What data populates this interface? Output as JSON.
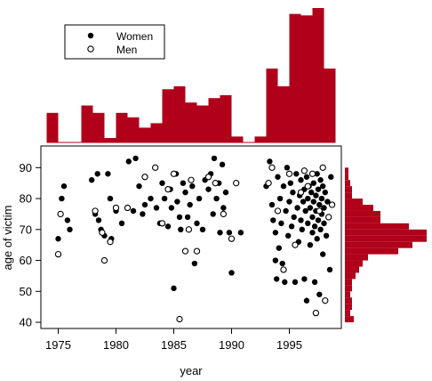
{
  "chart_data": {
    "type": "scatter",
    "xlabel": "year",
    "ylabel": "age of victim",
    "xlim": [
      1973.5,
      1999.5
    ],
    "ylim": [
      38,
      97
    ],
    "x_ticks": [
      1975,
      1980,
      1985,
      1990,
      1995
    ],
    "y_ticks": [
      40,
      50,
      60,
      70,
      80,
      90
    ],
    "legend": {
      "placement": "top-left",
      "entries": [
        "Women",
        "Men"
      ]
    },
    "bar_color": "#b0001a",
    "series": [
      {
        "name": "Women",
        "marker": "filled-circle",
        "points": [
          [
            1975.0,
            67
          ],
          [
            1975.3,
            80
          ],
          [
            1975.5,
            84
          ],
          [
            1975.8,
            73
          ],
          [
            1976.0,
            70
          ],
          [
            1977.9,
            86
          ],
          [
            1978.2,
            75
          ],
          [
            1978.4,
            88
          ],
          [
            1978.5,
            73
          ],
          [
            1978.7,
            70
          ],
          [
            1979.0,
            68
          ],
          [
            1979.3,
            88
          ],
          [
            1979.5,
            80
          ],
          [
            1979.6,
            67
          ],
          [
            1980.0,
            76
          ],
          [
            1980.5,
            72
          ],
          [
            1981.1,
            92
          ],
          [
            1981.5,
            76
          ],
          [
            1981.7,
            93
          ],
          [
            1982.0,
            84
          ],
          [
            1982.3,
            75
          ],
          [
            1982.5,
            78
          ],
          [
            1983.0,
            80
          ],
          [
            1983.4,
            90
          ],
          [
            1983.5,
            77
          ],
          [
            1983.8,
            72
          ],
          [
            1984.0,
            85
          ],
          [
            1984.2,
            80
          ],
          [
            1984.5,
            71
          ],
          [
            1984.7,
            83
          ],
          [
            1984.8,
            77
          ],
          [
            1985.0,
            51
          ],
          [
            1985.2,
            88
          ],
          [
            1985.3,
            79
          ],
          [
            1985.5,
            74
          ],
          [
            1985.6,
            70
          ],
          [
            1985.8,
            85
          ],
          [
            1986.0,
            82
          ],
          [
            1986.2,
            74
          ],
          [
            1986.4,
            78
          ],
          [
            1986.6,
            84
          ],
          [
            1986.8,
            59
          ],
          [
            1987.0,
            72
          ],
          [
            1987.2,
            80
          ],
          [
            1987.5,
            70
          ],
          [
            1987.7,
            86
          ],
          [
            1988.0,
            83
          ],
          [
            1988.2,
            88
          ],
          [
            1988.4,
            75
          ],
          [
            1988.5,
            93
          ],
          [
            1988.7,
            80
          ],
          [
            1988.9,
            85
          ],
          [
            1989.0,
            69
          ],
          [
            1989.2,
            91
          ],
          [
            1989.3,
            77
          ],
          [
            1989.5,
            82
          ],
          [
            1989.8,
            69
          ],
          [
            1990.0,
            56
          ],
          [
            1990.8,
            69
          ],
          [
            1993.0,
            84
          ],
          [
            1993.3,
            92
          ],
          [
            1993.5,
            78
          ],
          [
            1993.6,
            73
          ],
          [
            1993.8,
            69
          ],
          [
            1993.8,
            60
          ],
          [
            1993.9,
            54
          ],
          [
            1994.0,
            87
          ],
          [
            1994.1,
            64
          ],
          [
            1994.2,
            80
          ],
          [
            1994.3,
            72
          ],
          [
            1994.4,
            59
          ],
          [
            1994.5,
            84
          ],
          [
            1994.6,
            53
          ],
          [
            1994.7,
            76
          ],
          [
            1994.8,
            90
          ],
          [
            1994.9,
            68
          ],
          [
            1995.0,
            79
          ],
          [
            1995.1,
            85
          ],
          [
            1995.2,
            71
          ],
          [
            1995.3,
            82
          ],
          [
            1995.4,
            74
          ],
          [
            1995.5,
            53
          ],
          [
            1995.6,
            88
          ],
          [
            1995.7,
            77
          ],
          [
            1995.8,
            66
          ],
          [
            1995.9,
            81
          ],
          [
            1996.0,
            73
          ],
          [
            1996.0,
            86
          ],
          [
            1996.1,
            70
          ],
          [
            1996.2,
            79
          ],
          [
            1996.3,
            83
          ],
          [
            1996.3,
            54
          ],
          [
            1996.4,
            76
          ],
          [
            1996.5,
            47
          ],
          [
            1996.5,
            87
          ],
          [
            1996.6,
            72
          ],
          [
            1996.6,
            80
          ],
          [
            1996.7,
            84
          ],
          [
            1996.8,
            65
          ],
          [
            1996.8,
            77
          ],
          [
            1996.9,
            82
          ],
          [
            1997.0,
            74
          ],
          [
            1997.0,
            69
          ],
          [
            1997.1,
            85
          ],
          [
            1997.1,
            79
          ],
          [
            1997.2,
            71
          ],
          [
            1997.2,
            53
          ],
          [
            1997.3,
            81
          ],
          [
            1997.3,
            76
          ],
          [
            1997.4,
            88
          ],
          [
            1997.4,
            67
          ],
          [
            1997.5,
            83
          ],
          [
            1997.5,
            73
          ],
          [
            1997.6,
            49
          ],
          [
            1997.6,
            78
          ],
          [
            1997.7,
            86
          ],
          [
            1997.7,
            70
          ],
          [
            1997.8,
            80
          ],
          [
            1997.8,
            75
          ],
          [
            1997.9,
            84
          ],
          [
            1997.9,
            62
          ],
          [
            1998.0,
            77
          ],
          [
            1998.0,
            72
          ],
          [
            1998.1,
            82
          ],
          [
            1998.2,
            68
          ],
          [
            1998.3,
            79
          ],
          [
            1998.4,
            74
          ],
          [
            1998.5,
            57
          ],
          [
            1998.6,
            87
          ]
        ]
      },
      {
        "name": "Men",
        "marker": "open-circle",
        "points": [
          [
            1975.0,
            62
          ],
          [
            1975.2,
            75
          ],
          [
            1978.2,
            76
          ],
          [
            1978.8,
            69
          ],
          [
            1979.0,
            60
          ],
          [
            1979.5,
            66
          ],
          [
            1980.0,
            77
          ],
          [
            1981.0,
            77
          ],
          [
            1982.5,
            87
          ],
          [
            1983.4,
            90
          ],
          [
            1984.0,
            72
          ],
          [
            1984.5,
            83
          ],
          [
            1985.0,
            88
          ],
          [
            1985.5,
            41
          ],
          [
            1986.0,
            63
          ],
          [
            1986.3,
            70
          ],
          [
            1986.5,
            86
          ],
          [
            1987.0,
            63
          ],
          [
            1988.0,
            87
          ],
          [
            1988.6,
            85
          ],
          [
            1989.3,
            75
          ],
          [
            1990.0,
            67
          ],
          [
            1990.4,
            85
          ],
          [
            1993.2,
            85
          ],
          [
            1993.5,
            90
          ],
          [
            1994.0,
            76
          ],
          [
            1994.5,
            57
          ],
          [
            1995.0,
            88
          ],
          [
            1995.5,
            65
          ],
          [
            1996.0,
            82
          ],
          [
            1996.3,
            89
          ],
          [
            1996.6,
            84
          ],
          [
            1997.0,
            88
          ],
          [
            1997.3,
            43
          ],
          [
            1997.6,
            76
          ],
          [
            1997.9,
            90
          ],
          [
            1998.1,
            47
          ],
          [
            1998.4,
            74
          ],
          [
            1998.7,
            78
          ]
        ]
      }
    ],
    "year_histogram": {
      "bin_edges": [
        1974,
        1975,
        1976,
        1977,
        1978,
        1979,
        1980,
        1981,
        1982,
        1983,
        1984,
        1985,
        1986,
        1987,
        1988,
        1989,
        1990,
        1991,
        1992,
        1993,
        1994,
        1995,
        1996,
        1997,
        1998,
        1999
      ],
      "counts": [
        2,
        0,
        0,
        2.5,
        2,
        0.3,
        2,
        1.7,
        1,
        1.3,
        3.6,
        3.8,
        2.7,
        2.5,
        3,
        3.2,
        0.4,
        0,
        0.4,
        5,
        3.8,
        8.7,
        8.6,
        9.1,
        5
      ]
    },
    "age_histogram": {
      "bin_edges": [
        40,
        42,
        44,
        46,
        48,
        50,
        52,
        54,
        56,
        58,
        60,
        62,
        64,
        66,
        68,
        70,
        72,
        74,
        76,
        78,
        80,
        82,
        84,
        86,
        88,
        90
      ],
      "counts": [
        0.5,
        0.3,
        0.4,
        0.4,
        0.3,
        0.4,
        0.4,
        0.6,
        0.8,
        1.0,
        1.3,
        3.0,
        3.8,
        4.6,
        4.6,
        3.6,
        2.0,
        2.0,
        1.6,
        1.0,
        0.4,
        0.4,
        0.3,
        0.2,
        0.2
      ]
    }
  }
}
